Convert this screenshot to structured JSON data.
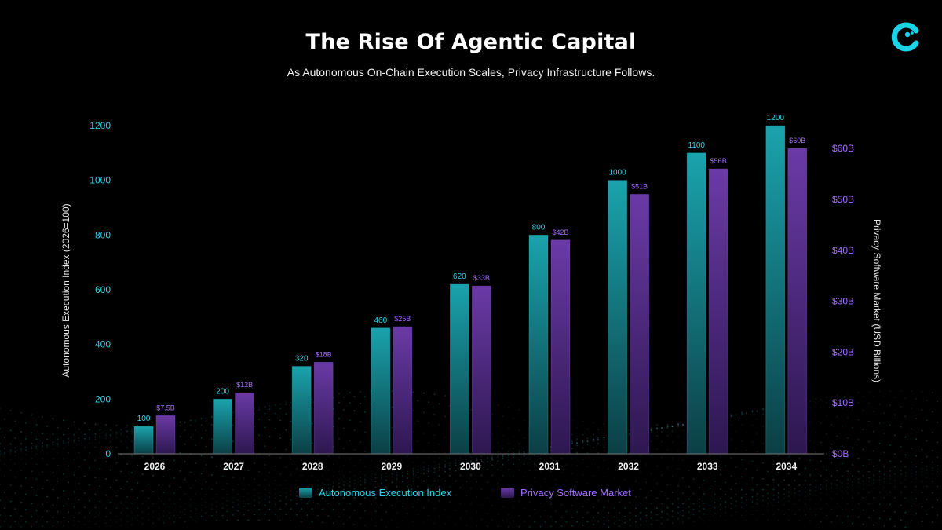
{
  "title": "The Rise Of Agentic Capital",
  "subtitle": "As Autonomous On-Chain Execution Scales, Privacy Infrastructure Follows.",
  "logo": {
    "icon": "brand-logo-icon",
    "color": "#19d3e6"
  },
  "colors": {
    "background": "#000000",
    "teal_top": "#1aa3ad",
    "teal_bottom": "#0b3f45",
    "purple_top": "#6a3aa6",
    "purple_bottom": "#2d1750",
    "teal_text": "#2ad4e6",
    "purple_text": "#a46cff",
    "axis": "#8a8a8a"
  },
  "chart_data": {
    "type": "bar",
    "title": "The Rise Of Agentic Capital",
    "categories": [
      "2026",
      "2027",
      "2028",
      "2029",
      "2030",
      "2031",
      "2032",
      "2033",
      "2034"
    ],
    "series": [
      {
        "name": "Autonomous Execution Index",
        "axis": "left",
        "values": [
          100,
          200,
          320,
          460,
          620,
          800,
          1000,
          1100,
          1200
        ],
        "labels": [
          "100",
          "200",
          "320",
          "460",
          "620",
          "800",
          "1000",
          "1100",
          "1200"
        ]
      },
      {
        "name": "Privacy Software Market",
        "axis": "right",
        "values": [
          7.5,
          12,
          18,
          25,
          33,
          42,
          51,
          56,
          60
        ],
        "labels": [
          "$7.5B",
          "$12B",
          "$18B",
          "$25B",
          "$33B",
          "$42B",
          "$51B",
          "$56B",
          "$60B"
        ]
      }
    ],
    "ylabel": "Autonomous Execution Index (2026=100)",
    "ylabel_right": "Privacy Software Market (USD Billions)",
    "ylim": [
      0,
      1200
    ],
    "yticks": [
      "0",
      "200",
      "400",
      "600",
      "800",
      "1000",
      "1200"
    ],
    "ylim_right": [
      0,
      64.5
    ],
    "yticks_right": [
      "$0B",
      "$10B",
      "$20B",
      "$30B",
      "$40B",
      "$50B",
      "$60B"
    ],
    "grid": false,
    "legend": "bottom-center"
  }
}
